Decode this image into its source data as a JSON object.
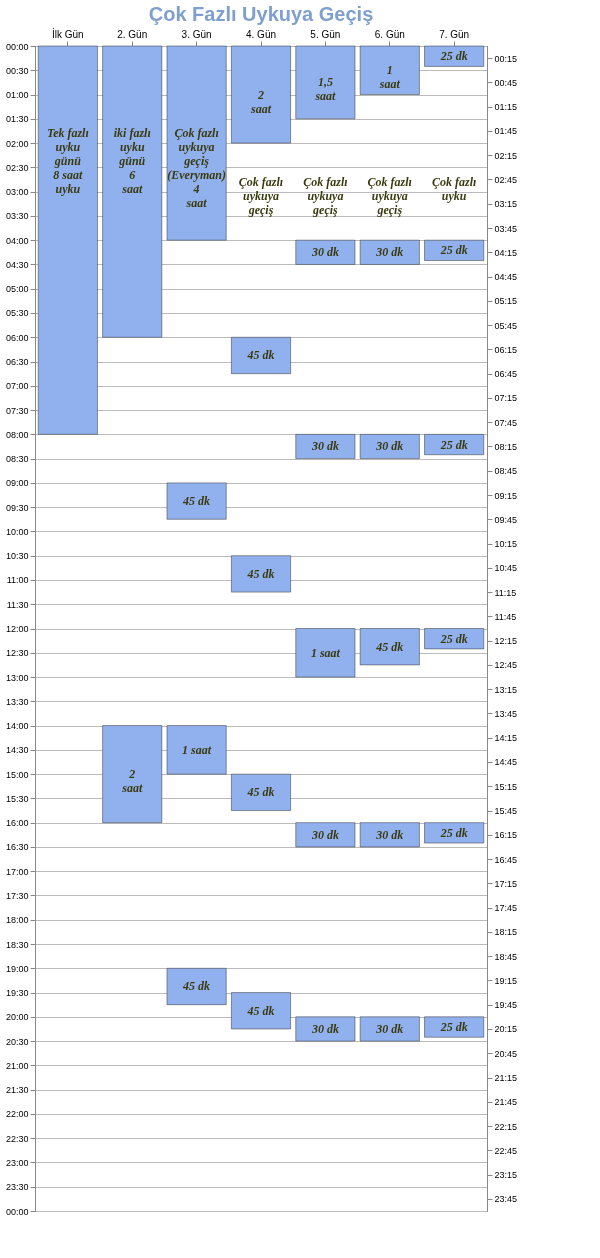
{
  "chart_data": {
    "type": "bar",
    "title": "Çok Fazlı Uykuya Geçiş",
    "categories": [
      "İlk Gün",
      "2. Gün",
      "3. Gün",
      "4. Gün",
      "5. Gün",
      "6. Gün",
      "7. Gün"
    ],
    "series": [
      {
        "color": "#91b1ee",
        "base": [
          0,
          0,
          0,
          0,
          0,
          0,
          0
        ],
        "values": [
          8,
          6,
          4,
          2,
          1.5,
          1,
          0.42
        ]
      },
      {
        "color": "#91b1ee",
        "base": [
          null,
          14,
          9,
          6,
          4,
          4,
          4
        ],
        "values": [
          null,
          2,
          0.75,
          0.75,
          0.5,
          0.5,
          0.42
        ]
      },
      {
        "color": "#91b1ee",
        "base": [
          null,
          null,
          14,
          10.5,
          8,
          8,
          8
        ],
        "values": [
          null,
          null,
          1,
          0.75,
          0.5,
          0.5,
          0.42
        ]
      },
      {
        "color": "#91b1ee",
        "base": [
          null,
          null,
          19,
          15,
          12,
          12,
          12
        ],
        "values": [
          null,
          null,
          0.75,
          0.75,
          1,
          0.75,
          0.42
        ]
      },
      {
        "color": "#91b1ee",
        "base": [
          null,
          null,
          null,
          19.5,
          16,
          16,
          16
        ],
        "values": [
          null,
          null,
          null,
          0.75,
          0.5,
          0.5,
          0.42
        ]
      },
      {
        "color": "#91b1ee",
        "base": [
          null,
          null,
          null,
          null,
          20,
          20,
          20
        ],
        "values": [
          null,
          null,
          null,
          null,
          0.5,
          0.5,
          0.42
        ]
      }
    ],
    "ylim": [
      24,
      0
    ],
    "yticks": [
      {
        "value": 0,
        "label": "00:00"
      },
      {
        "value": 0.5,
        "label": "00:30"
      },
      {
        "value": 1,
        "label": "01:00"
      },
      {
        "value": 1.5,
        "label": "01:30"
      },
      {
        "value": 2,
        "label": "02:00"
      },
      {
        "value": 2.5,
        "label": "02:30"
      },
      {
        "value": 3,
        "label": "03:00"
      },
      {
        "value": 3.5,
        "label": "03:30"
      },
      {
        "value": 4,
        "label": "04:00"
      },
      {
        "value": 4.5,
        "label": "04:30"
      },
      {
        "value": 5,
        "label": "05:00"
      },
      {
        "value": 5.5,
        "label": "05:30"
      },
      {
        "value": 6,
        "label": "06:00"
      },
      {
        "value": 6.5,
        "label": "06:30"
      },
      {
        "value": 7,
        "label": "07:00"
      },
      {
        "value": 7.5,
        "label": "07:30"
      },
      {
        "value": 8,
        "label": "08:00"
      },
      {
        "value": 8.5,
        "label": "08:30"
      },
      {
        "value": 9,
        "label": "09:00"
      },
      {
        "value": 9.5,
        "label": "09:30"
      },
      {
        "value": 10,
        "label": "10:00"
      },
      {
        "value": 10.5,
        "label": "10:30"
      },
      {
        "value": 11,
        "label": "11:00"
      },
      {
        "value": 11.5,
        "label": "11:30"
      },
      {
        "value": 12,
        "label": "12:00"
      },
      {
        "value": 12.5,
        "label": "12:30"
      },
      {
        "value": 13,
        "label": "13:00"
      },
      {
        "value": 13.5,
        "label": "13:30"
      },
      {
        "value": 14,
        "label": "14:00"
      },
      {
        "value": 14.5,
        "label": "14:30"
      },
      {
        "value": 15,
        "label": "15:00"
      },
      {
        "value": 15.5,
        "label": "15:30"
      },
      {
        "value": 16,
        "label": "16:00"
      },
      {
        "value": 16.5,
        "label": "16:30"
      },
      {
        "value": 17,
        "label": "17:00"
      },
      {
        "value": 17.5,
        "label": "17:30"
      },
      {
        "value": 18,
        "label": "18:00"
      },
      {
        "value": 18.5,
        "label": "18:30"
      },
      {
        "value": 19,
        "label": "19:00"
      },
      {
        "value": 19.5,
        "label": "19:30"
      },
      {
        "value": 20,
        "label": "20:00"
      },
      {
        "value": 20.5,
        "label": "20:30"
      },
      {
        "value": 21,
        "label": "21:00"
      },
      {
        "value": 21.5,
        "label": "21:30"
      },
      {
        "value": 22,
        "label": "22:00"
      },
      {
        "value": 22.5,
        "label": "22:30"
      },
      {
        "value": 23,
        "label": "23:00"
      },
      {
        "value": 23.5,
        "label": "23:30"
      },
      {
        "value": 24,
        "label": "00:00"
      }
    ],
    "y2lim": [
      24,
      0
    ],
    "y2ticks": [
      {
        "value": 0.25,
        "label": "00:15"
      },
      {
        "value": 0.75,
        "label": "00:45"
      },
      {
        "value": 1.25,
        "label": "01:15"
      },
      {
        "value": 1.75,
        "label": "01:45"
      },
      {
        "value": 2.25,
        "label": "02:15"
      },
      {
        "value": 2.75,
        "label": "02:45"
      },
      {
        "value": 3.25,
        "label": "03:15"
      },
      {
        "value": 3.75,
        "label": "03:45"
      },
      {
        "value": 4.25,
        "label": "04:15"
      },
      {
        "value": 4.75,
        "label": "04:45"
      },
      {
        "value": 5.25,
        "label": "05:15"
      },
      {
        "value": 5.75,
        "label": "05:45"
      },
      {
        "value": 6.25,
        "label": "06:15"
      },
      {
        "value": 6.75,
        "label": "06:45"
      },
      {
        "value": 7.25,
        "label": "07:15"
      },
      {
        "value": 7.75,
        "label": "07:45"
      },
      {
        "value": 8.25,
        "label": "08:15"
      },
      {
        "value": 8.75,
        "label": "08:45"
      },
      {
        "value": 9.25,
        "label": "09:15"
      },
      {
        "value": 9.75,
        "label": "09:45"
      },
      {
        "value": 10.25,
        "label": "10:15"
      },
      {
        "value": 10.75,
        "label": "10:45"
      },
      {
        "value": 11.25,
        "label": "11:15"
      },
      {
        "value": 11.75,
        "label": "11:45"
      },
      {
        "value": 12.25,
        "label": "12:15"
      },
      {
        "value": 12.75,
        "label": "12:45"
      },
      {
        "value": 13.25,
        "label": "13:15"
      },
      {
        "value": 13.75,
        "label": "13:45"
      },
      {
        "value": 14.25,
        "label": "14:15"
      },
      {
        "value": 14.75,
        "label": "14:45"
      },
      {
        "value": 15.25,
        "label": "15:15"
      },
      {
        "value": 15.75,
        "label": "15:45"
      },
      {
        "value": 16.25,
        "label": "16:15"
      },
      {
        "value": 16.75,
        "label": "16:45"
      },
      {
        "value": 17.25,
        "label": "17:15"
      },
      {
        "value": 17.75,
        "label": "17:45"
      },
      {
        "value": 18.25,
        "label": "18:15"
      },
      {
        "value": 18.75,
        "label": "18:45"
      },
      {
        "value": 19.25,
        "label": "19:15"
      },
      {
        "value": 19.75,
        "label": "19:45"
      },
      {
        "value": 20.25,
        "label": "20:15"
      },
      {
        "value": 20.75,
        "label": "20:45"
      },
      {
        "value": 21.25,
        "label": "21:15"
      },
      {
        "value": 21.75,
        "label": "21:45"
      },
      {
        "value": 22.25,
        "label": "22:15"
      },
      {
        "value": 22.75,
        "label": "22:45"
      },
      {
        "value": 23.25,
        "label": "23:15"
      },
      {
        "value": 23.75,
        "label": "23:45"
      }
    ],
    "grid": "y",
    "annotations": [
      "Tek fazlı\nuyku\ngünü\n8 saat\nuyku",
      "iki fazlı\nuyku\ngünü\n6\nsaat",
      "2\nsaat",
      "Çok fazlı\nuykuya\ngeçiş\n(Everyman)\n4\nsaat",
      "45 dk",
      "1 saat",
      "45 dk",
      "2\nsaat",
      "45 dk",
      "45 dk",
      "45 dk",
      "45 dk",
      "1,5\nsaat",
      "30 dk",
      "30 dk",
      "1 saat",
      "30 dk",
      "30 dk",
      "1\nsaat",
      "30 dk",
      "30 dk",
      "45 dk",
      "30 dk",
      "30 dk",
      "25 dk",
      "25 dk",
      "25 dk",
      "25 dk",
      "25 dk",
      "25 dk",
      "Çok fazlı\nuykuya\ngeçiş",
      "Çok fazlı\nuykuya\ngeçiş",
      "Çok fazlı\nuykuya\ngeçiş",
      "Çok fazlı\nuyku"
    ]
  }
}
